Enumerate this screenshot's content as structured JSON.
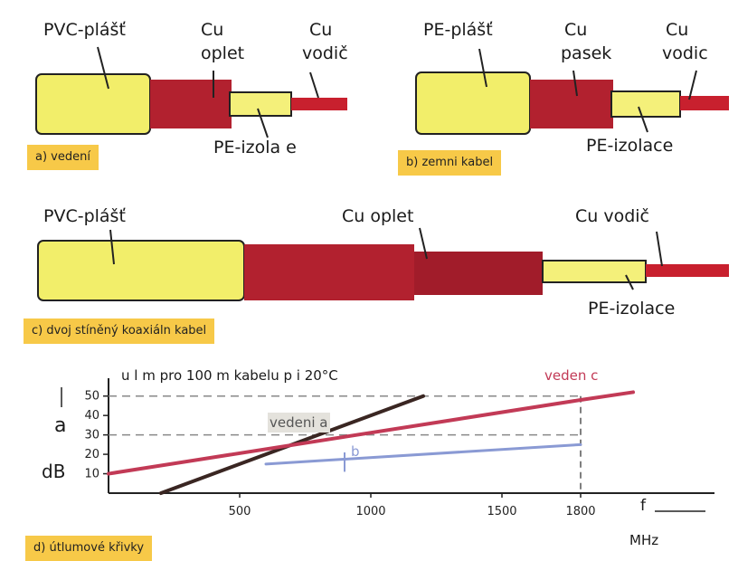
{
  "cable_a": {
    "labels": {
      "sheath": "PVC-plášť",
      "braid_line1": "Cu",
      "braid_line2": "oplet",
      "conductor_line1": "Cu",
      "conductor_line2": "vodič",
      "insulation": "PE-izola e"
    },
    "caption": "a) vedení"
  },
  "cable_b": {
    "labels": {
      "sheath": "PE-plášť",
      "tape_line1": "Cu",
      "tape_line2": "pasek",
      "conductor_line1": "Cu",
      "conductor_line2": "vodic",
      "insulation": "PE-izolace"
    },
    "caption": "b) zemni kabel"
  },
  "cable_c": {
    "labels": {
      "sheath": "PVC-plášť",
      "braid": "Cu oplet",
      "conductor": "Cu vodič",
      "insulation": "PE-izolace"
    },
    "caption": "c) dvoj  stíněný koaxiáln  kabel"
  },
  "colors": {
    "sheath": "#f2ee6a",
    "braid": "#b2212f",
    "conductor": "#c8202e",
    "insulation": "#f4f07a",
    "tag": "#f7c948"
  },
  "chart": {
    "title": "u l  m pro 100 m kabelu p i 20°C",
    "label_vedeni_c": "veden  c",
    "label_vedeni_a": "vedeni a",
    "label_b": "b",
    "y_symbol": "a",
    "y_unit": "dB",
    "x_symbol": "f",
    "x_unit": "MHz",
    "caption": "d) útlumové křivky"
  },
  "chart_data": {
    "type": "line",
    "xlabel": "f",
    "ylabel": "a",
    "xlim": [
      0,
      2000
    ],
    "ylim": [
      0,
      55
    ],
    "x_ticks": [
      "500",
      "1000",
      "1500",
      "1800"
    ],
    "y_ticks": [
      "10",
      "20",
      "30",
      "40",
      "50"
    ],
    "series": [
      {
        "name": "vedení a",
        "color": "#3a2622",
        "x": [
          200,
          1200
        ],
        "y": [
          0,
          50
        ]
      },
      {
        "name": "veden  c",
        "color": "#c23a56",
        "x": [
          0,
          1800,
          2000
        ],
        "y": [
          10,
          48,
          52
        ]
      },
      {
        "name": "b",
        "color": "#8a9ad4",
        "x": [
          600,
          1800
        ],
        "y": [
          15,
          25
        ]
      }
    ],
    "reference_lines": [
      {
        "axis": "y",
        "value": 30
      },
      {
        "axis": "y",
        "value": 50
      },
      {
        "axis": "x",
        "value": 1800
      }
    ],
    "grid": false
  }
}
